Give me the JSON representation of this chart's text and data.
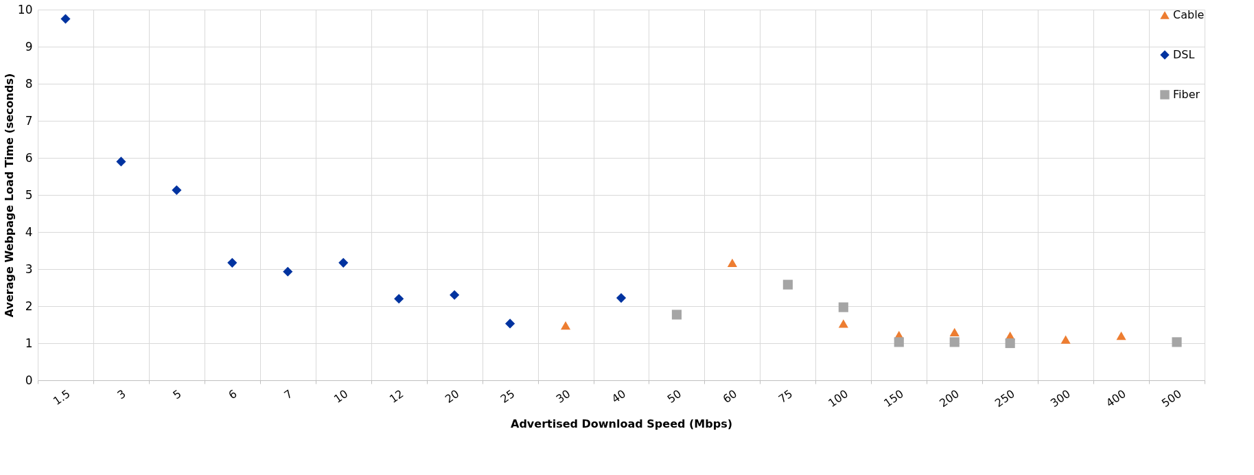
{
  "chart_data": {
    "type": "scatter",
    "xlabel": "Advertised Download Speed (Mbps)",
    "ylabel": "Average Webpage Load Time (seconds)",
    "categories": [
      "1.5",
      "3",
      "5",
      "6",
      "7",
      "10",
      "12",
      "20",
      "25",
      "30",
      "40",
      "50",
      "60",
      "75",
      "100",
      "150",
      "200",
      "250",
      "300",
      "400",
      "500"
    ],
    "series": [
      {
        "name": "Cable",
        "color": "#ed7d31",
        "marker": "triangle",
        "values": [
          null,
          null,
          null,
          null,
          null,
          null,
          null,
          null,
          null,
          1.48,
          null,
          null,
          3.17,
          null,
          1.53,
          1.22,
          1.3,
          1.2,
          1.1,
          1.2,
          null
        ]
      },
      {
        "name": "DSL",
        "color": "#0033a0",
        "marker": "diamond",
        "values": [
          9.75,
          5.9,
          5.13,
          3.17,
          2.93,
          3.17,
          2.2,
          2.3,
          1.53,
          null,
          2.22,
          null,
          null,
          null,
          null,
          null,
          null,
          null,
          null,
          null,
          null
        ]
      },
      {
        "name": "Fiber",
        "color": "#a5a5a5",
        "marker": "square",
        "values": [
          null,
          null,
          null,
          null,
          null,
          null,
          null,
          null,
          null,
          null,
          null,
          1.77,
          null,
          2.58,
          1.97,
          1.03,
          1.03,
          1.0,
          null,
          null,
          1.03
        ]
      }
    ],
    "ylim": [
      0,
      10
    ],
    "yticks": [
      0,
      1,
      2,
      3,
      4,
      5,
      6,
      7,
      8,
      9,
      10
    ],
    "grid": true,
    "legend": "top right"
  }
}
